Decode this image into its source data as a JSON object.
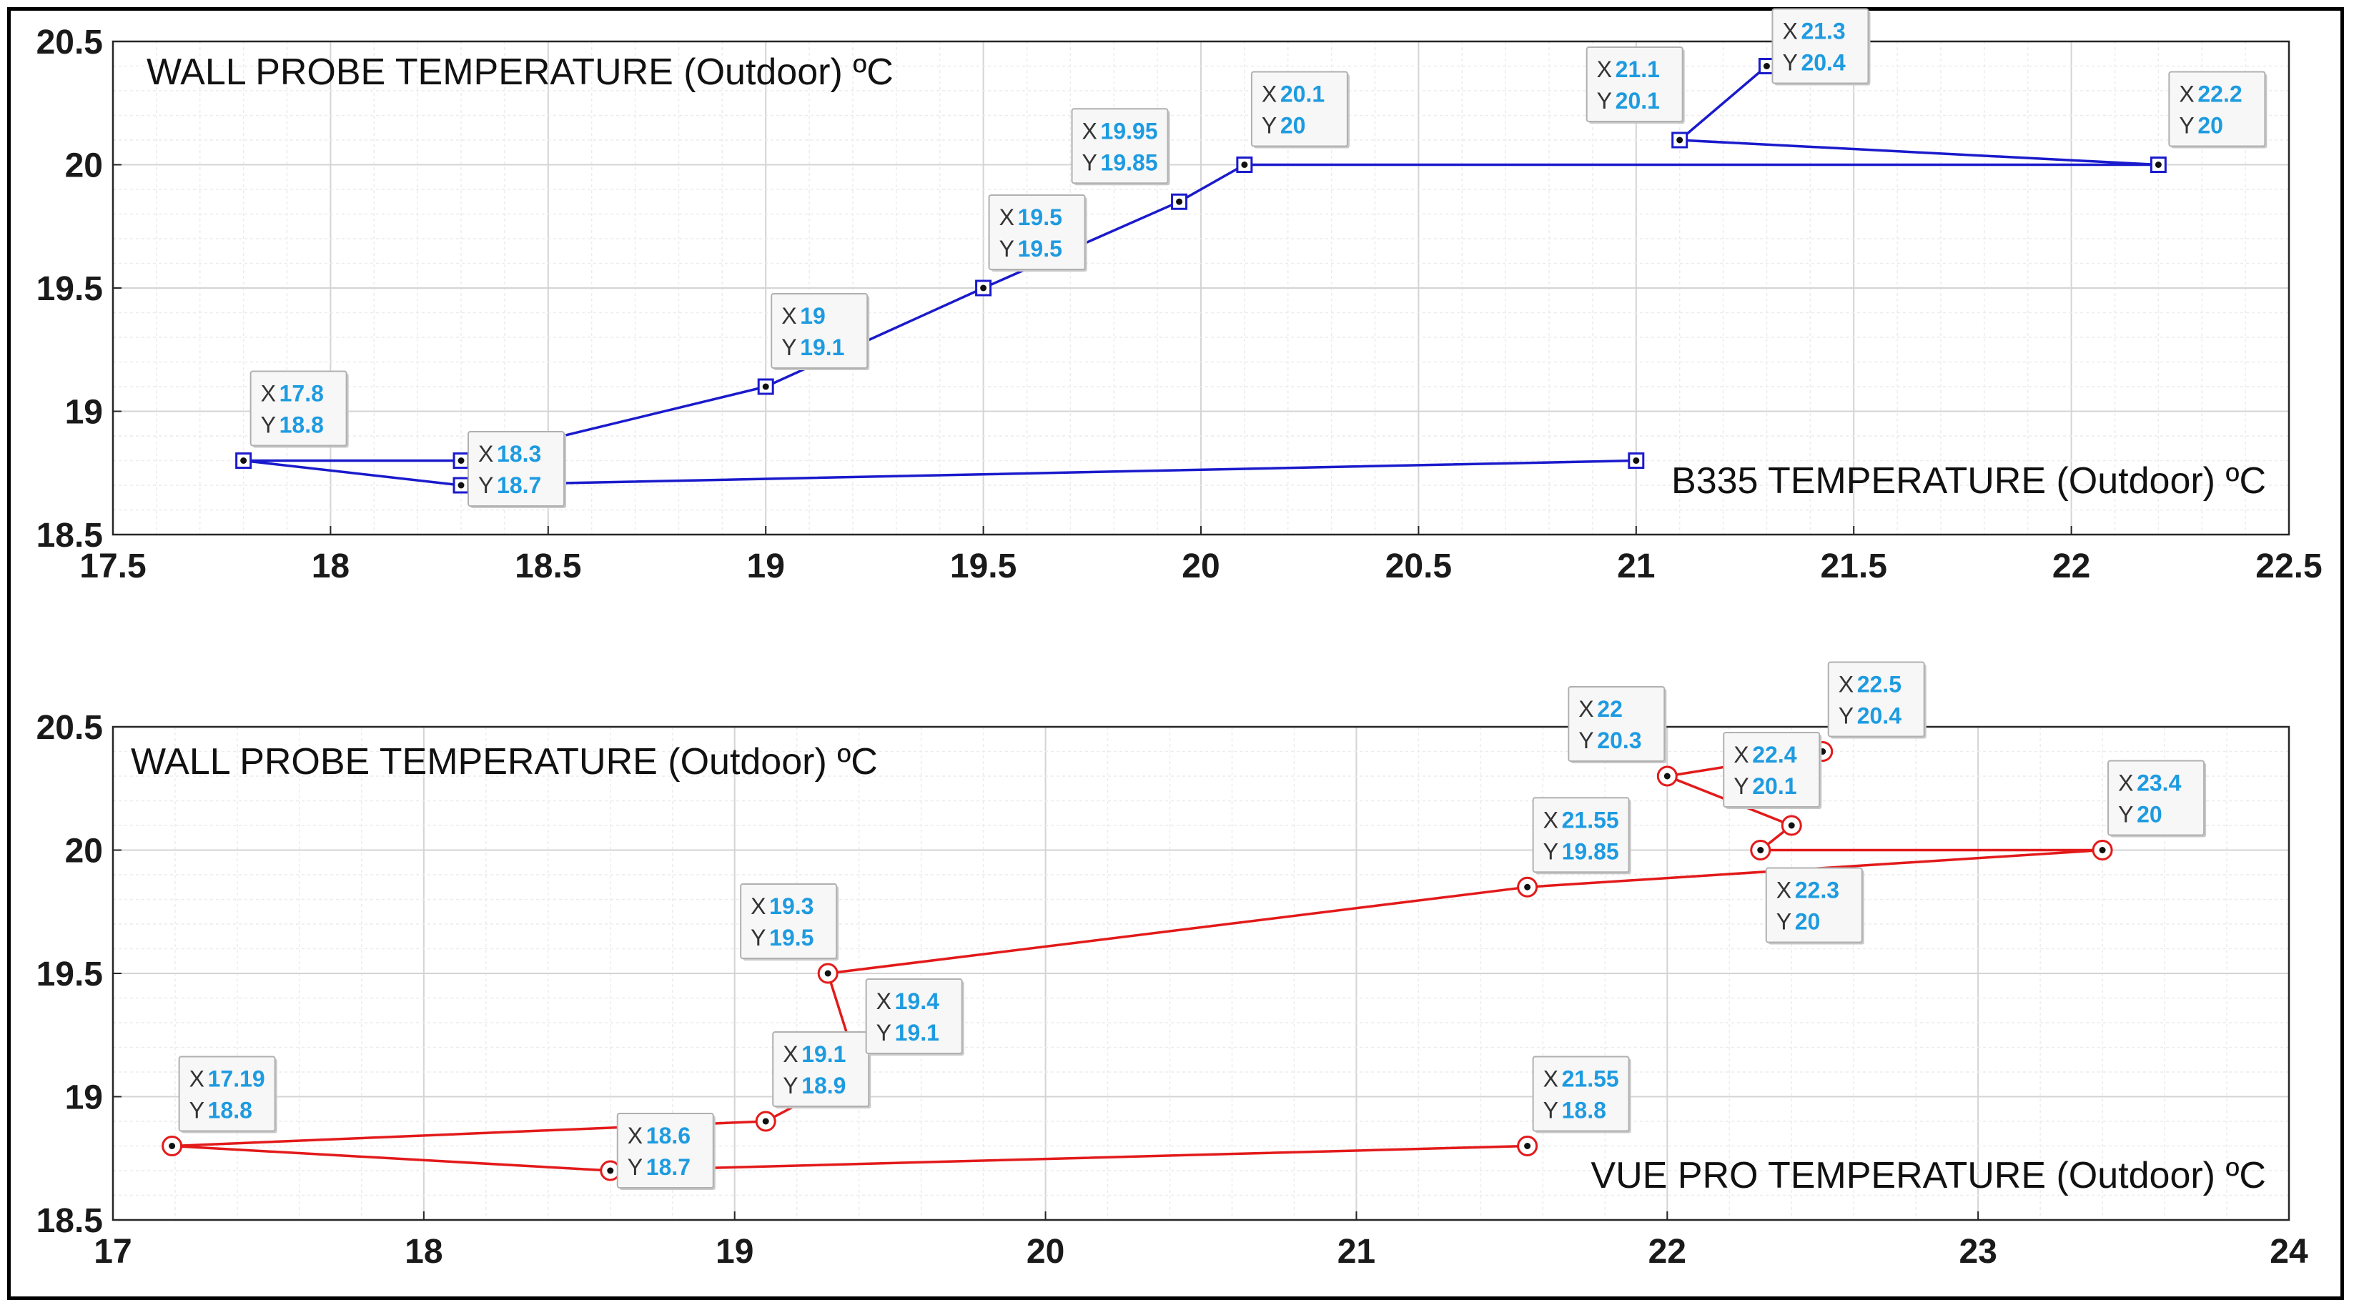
{
  "chart_data": [
    {
      "type": "line",
      "title": "WALL PROBE TEMPERATURE (Outdoor) ºC",
      "xlabel": "B335 TEMPERATURE (Outdoor) ºC",
      "xlim": [
        17.5,
        22.5
      ],
      "ylim": [
        18.5,
        20.5
      ],
      "xticks": [
        "17.5",
        "18",
        "18.5",
        "19",
        "19.5",
        "20",
        "20.5",
        "21",
        "21.5",
        "22",
        "22.5"
      ],
      "yticks": [
        "18.5",
        "19",
        "19.5",
        "20",
        "20.5"
      ],
      "grid": true,
      "color": "#1a1acc",
      "marker": "square",
      "x": [
        21,
        18.3,
        17.8,
        18.3,
        19,
        19.5,
        19.95,
        20.1,
        22.2,
        21.1,
        21.3
      ],
      "y": [
        18.8,
        18.7,
        18.8,
        18.8,
        19.1,
        19.5,
        19.85,
        20,
        20,
        20.1,
        20.4
      ],
      "datatips": [
        {
          "x": "17.8",
          "y": "18.8"
        },
        {
          "x": "18.3",
          "y": "18.7"
        },
        {
          "x": "19",
          "y": "19.1"
        },
        {
          "x": "19.5",
          "y": "19.5"
        },
        {
          "x": "19.95",
          "y": "19.85"
        },
        {
          "x": "20.1",
          "y": "20"
        },
        {
          "x": "21.1",
          "y": "20.1"
        },
        {
          "x": "21.3",
          "y": "20.4"
        },
        {
          "x": "22.2",
          "y": "20"
        }
      ]
    },
    {
      "type": "line",
      "title": "WALL PROBE TEMPERATURE (Outdoor) ºC",
      "xlabel": "VUE PRO TEMPERATURE (Outdoor) ºC",
      "xlim": [
        17,
        24
      ],
      "ylim": [
        18.5,
        20.5
      ],
      "xticks": [
        "17",
        "18",
        "19",
        "20",
        "21",
        "22",
        "23",
        "24"
      ],
      "yticks": [
        "18.5",
        "19",
        "19.5",
        "20",
        "20.5"
      ],
      "grid": true,
      "color": "#e31a1a",
      "marker": "circle",
      "x": [
        21.55,
        18.6,
        17.19,
        19.1,
        19.4,
        19.3,
        21.55,
        23.4,
        22.3,
        22.4,
        22,
        22.5
      ],
      "y": [
        18.8,
        18.7,
        18.8,
        18.9,
        19.1,
        19.5,
        19.85,
        20,
        20,
        20.1,
        20.3,
        20.4
      ],
      "datatips": [
        {
          "x": "17.19",
          "y": "18.8"
        },
        {
          "x": "18.6",
          "y": "18.7"
        },
        {
          "x": "19.1",
          "y": "18.9"
        },
        {
          "x": "19.4",
          "y": "19.1"
        },
        {
          "x": "19.3",
          "y": "19.5"
        },
        {
          "x": "21.55",
          "y": "19.85"
        },
        {
          "x": "21.55",
          "y": "18.8"
        },
        {
          "x": "22",
          "y": "20.3"
        },
        {
          "x": "22.4",
          "y": "20.1"
        },
        {
          "x": "22.5",
          "y": "20.4"
        },
        {
          "x": "22.3",
          "y": "20"
        },
        {
          "x": "23.4",
          "y": "20"
        }
      ]
    }
  ],
  "labels": {
    "tip_x": "X",
    "tip_y": "Y"
  }
}
